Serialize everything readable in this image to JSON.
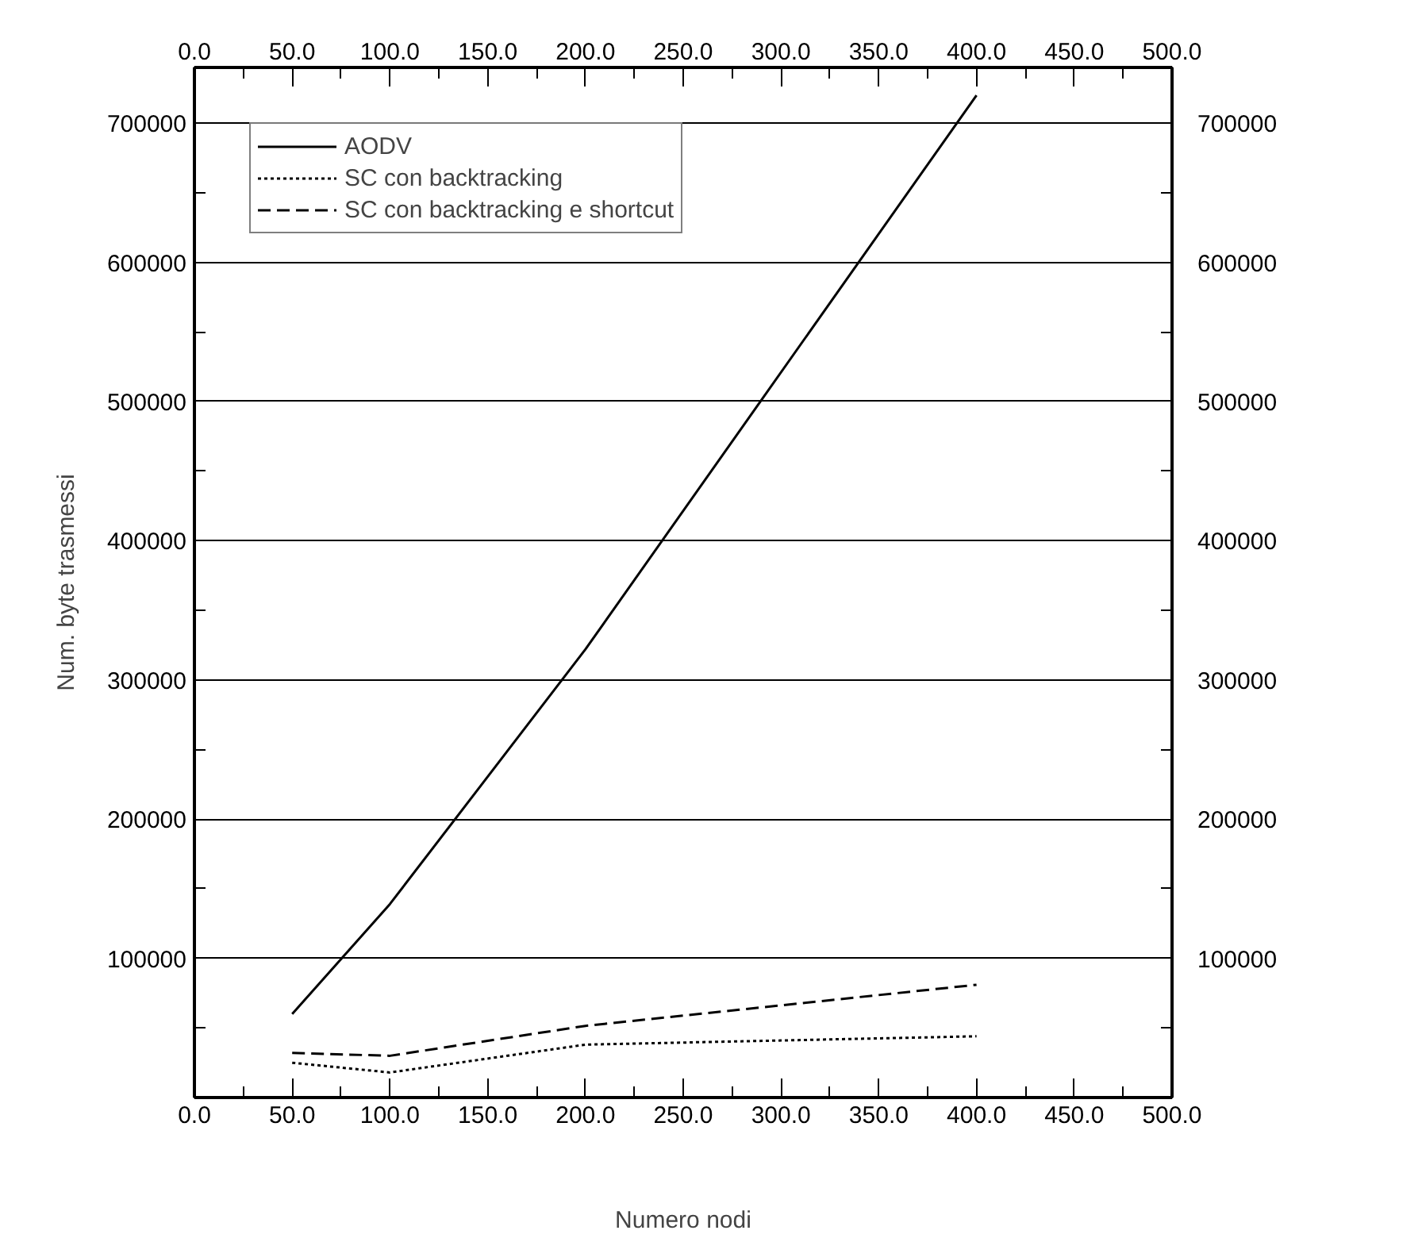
{
  "chart_data": {
    "type": "line",
    "xlabel": "Numero nodi",
    "ylabel": "Num. byte trasmessi",
    "x": [
      50,
      100,
      200,
      400
    ],
    "series": [
      {
        "name": "AODV",
        "color": "#000000",
        "line_style": "solid",
        "values": [
          60000,
          139000,
          322000,
          720000
        ]
      },
      {
        "name": "SC con backtracking",
        "color": "#000000",
        "line_style": "dotted",
        "values": [
          25000,
          18000,
          38000,
          44000
        ]
      },
      {
        "name": "SC con backtracking e shortcut",
        "color": "#000000",
        "line_style": "dashed",
        "values": [
          32000,
          30000,
          51500,
          81000
        ]
      }
    ],
    "xlim": [
      0,
      500
    ],
    "xticks": [
      {
        "value": 0,
        "label": "0.0"
      },
      {
        "value": 25,
        "label": null
      },
      {
        "value": 50,
        "label": "50.0"
      },
      {
        "value": 75,
        "label": null
      },
      {
        "value": 100,
        "label": "100.0"
      },
      {
        "value": 125,
        "label": null
      },
      {
        "value": 150,
        "label": "150.0"
      },
      {
        "value": 175,
        "label": null
      },
      {
        "value": 200,
        "label": "200.0"
      },
      {
        "value": 225,
        "label": null
      },
      {
        "value": 250,
        "label": "250.0"
      },
      {
        "value": 275,
        "label": null
      },
      {
        "value": 300,
        "label": "300.0"
      },
      {
        "value": 325,
        "label": null
      },
      {
        "value": 350,
        "label": "350.0"
      },
      {
        "value": 375,
        "label": null
      },
      {
        "value": 400,
        "label": "400.0"
      },
      {
        "value": 425,
        "label": null
      },
      {
        "value": 450,
        "label": "450.0"
      },
      {
        "value": 475,
        "label": null
      },
      {
        "value": 500,
        "label": "500.0"
      }
    ],
    "x2lim": [
      0,
      500
    ],
    "x2ticks": [
      {
        "value": 0,
        "label": "0.0"
      },
      {
        "value": 25,
        "label": null
      },
      {
        "value": 50,
        "label": "50.0"
      },
      {
        "value": 75,
        "label": null
      },
      {
        "value": 100,
        "label": "100.0"
      },
      {
        "value": 125,
        "label": null
      },
      {
        "value": 150,
        "label": "150.0"
      },
      {
        "value": 175,
        "label": null
      },
      {
        "value": 200,
        "label": "200.0"
      },
      {
        "value": 225,
        "label": null
      },
      {
        "value": 250,
        "label": "250.0"
      },
      {
        "value": 275,
        "label": null
      },
      {
        "value": 300,
        "label": "300.0"
      },
      {
        "value": 325,
        "label": null
      },
      {
        "value": 350,
        "label": "350.0"
      },
      {
        "value": 375,
        "label": null
      },
      {
        "value": 400,
        "label": "400.0"
      },
      {
        "value": 425,
        "label": null
      },
      {
        "value": 450,
        "label": "450.0"
      },
      {
        "value": 475,
        "label": null
      },
      {
        "value": 500,
        "label": "500.0"
      }
    ],
    "ylim": [
      0,
      740000
    ],
    "yticks": [
      {
        "value": 50000,
        "label": null
      },
      100000,
      {
        "value": 150000,
        "label": null
      },
      200000,
      {
        "value": 250000,
        "label": null
      },
      300000,
      {
        "value": 350000,
        "label": null
      },
      400000,
      {
        "value": 450000,
        "label": null
      },
      500000,
      {
        "value": 550000,
        "label": null
      },
      600000,
      {
        "value": 650000,
        "label": null
      },
      700000
    ],
    "y2lim": [
      0,
      740000
    ],
    "y2ticks": [
      {
        "value": 50000,
        "label": null
      },
      100000,
      {
        "value": 150000,
        "label": null
      },
      200000,
      {
        "value": 250000,
        "label": null
      },
      300000,
      {
        "value": 350000,
        "label": null
      },
      400000,
      {
        "value": 450000,
        "label": null
      },
      500000,
      {
        "value": 550000,
        "label": null
      },
      600000,
      {
        "value": 650000,
        "label": null
      },
      700000
    ],
    "grid": "y",
    "legend": "top left",
    "marker": "none"
  }
}
